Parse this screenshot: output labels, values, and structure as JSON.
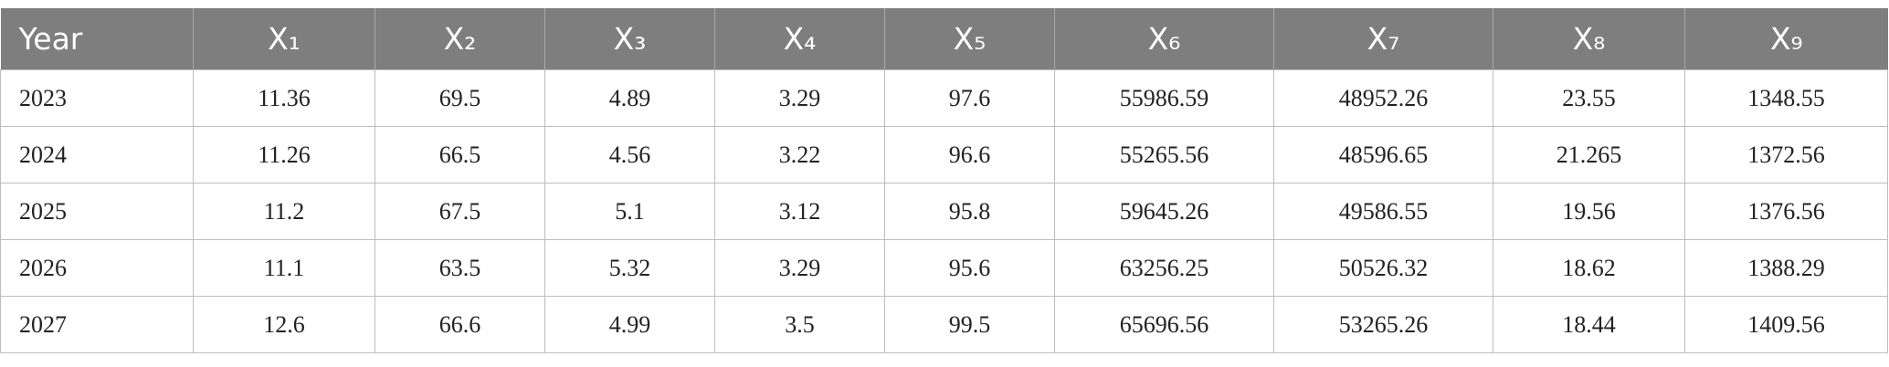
{
  "table": {
    "header": [
      "Year",
      "X₁",
      "X₂",
      "X₃",
      "X₄",
      "X₅",
      "X₆",
      "X₇",
      "X₈",
      "X₉"
    ],
    "rows": [
      [
        "2023",
        "11.36",
        "69.5",
        "4.89",
        "3.29",
        "97.6",
        "55986.59",
        "48952.26",
        "23.55",
        "1348.55"
      ],
      [
        "2024",
        "11.26",
        "66.5",
        "4.56",
        "3.22",
        "96.6",
        "55265.56",
        "48596.65",
        "21.265",
        "1372.56"
      ],
      [
        "2025",
        "11.2",
        "67.5",
        "5.1",
        "3.12",
        "95.8",
        "59645.26",
        "49586.55",
        "19.56",
        "1376.56"
      ],
      [
        "2026",
        "11.1",
        "63.5",
        "5.32",
        "3.29",
        "95.6",
        "63256.25",
        "50526.32",
        "18.62",
        "1388.29"
      ],
      [
        "2027",
        "12.6",
        "66.6",
        "4.99",
        "3.5",
        "99.5",
        "65696.56",
        "53265.26",
        "18.44",
        "1409.56"
      ]
    ]
  }
}
